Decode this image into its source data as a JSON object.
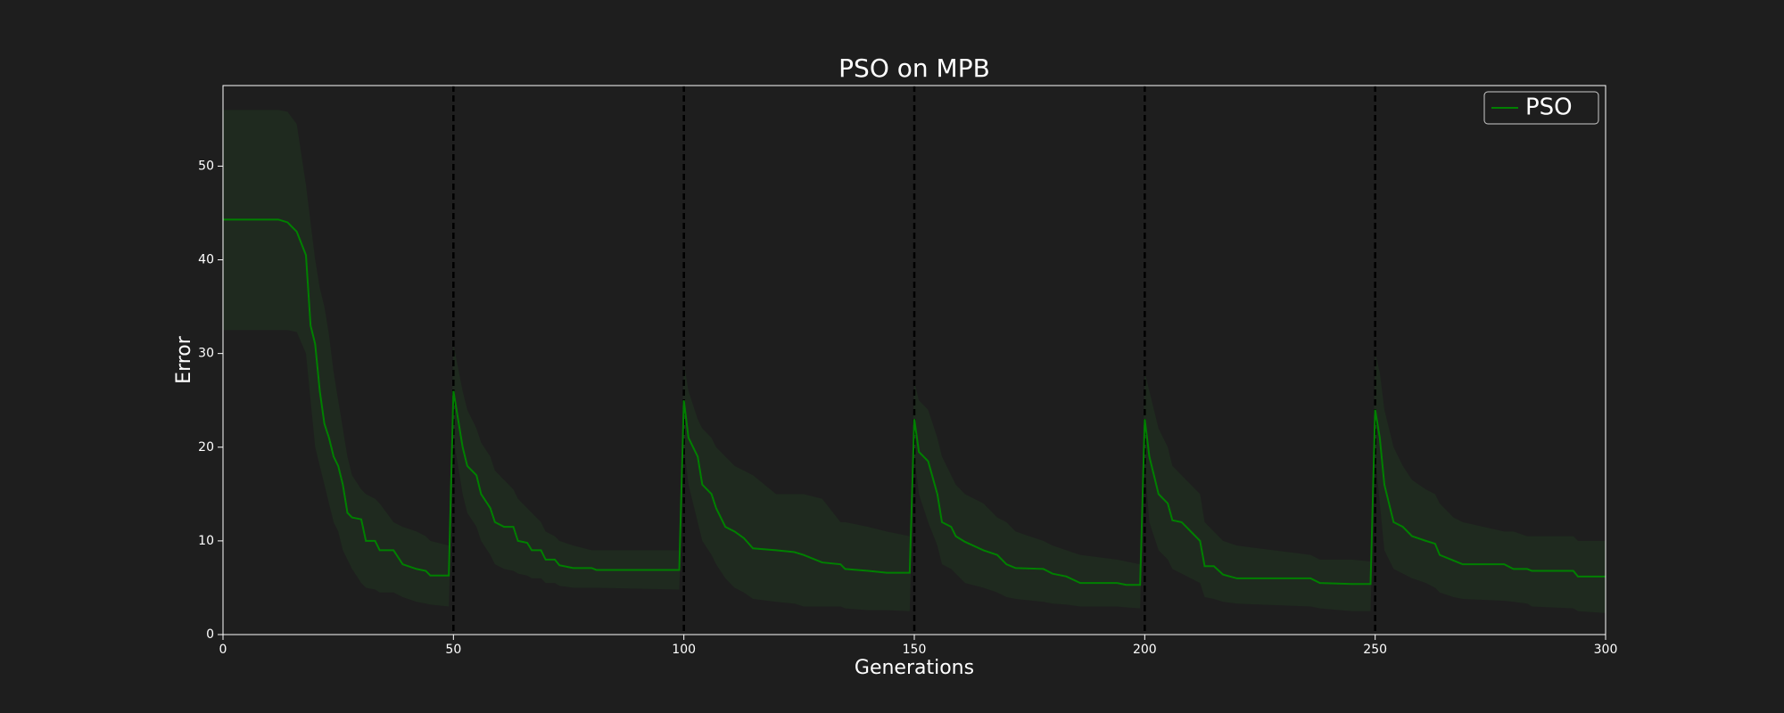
{
  "chart_data": {
    "type": "line",
    "title": "PSO on MPB",
    "xlabel": "Generations",
    "ylabel": "Error",
    "x": [
      0,
      12,
      14,
      16,
      18,
      19,
      20,
      21,
      22,
      23,
      24,
      25,
      26,
      27,
      28,
      30,
      31,
      33,
      34,
      37,
      39,
      42,
      44,
      45,
      49,
      50,
      52,
      53,
      55,
      56,
      58,
      59,
      61,
      63,
      64,
      66,
      67,
      69,
      70,
      72,
      73,
      76,
      80,
      81,
      99,
      100,
      101,
      103,
      104,
      106,
      107,
      109,
      111,
      113,
      115,
      120,
      124,
      126,
      130,
      134,
      135,
      140,
      144,
      149,
      150,
      151,
      153,
      155,
      156,
      158,
      159,
      161,
      165,
      168,
      170,
      172,
      178,
      180,
      183,
      186,
      194,
      196,
      199,
      200,
      201,
      203,
      205,
      206,
      208,
      210,
      212,
      213,
      215,
      217,
      220,
      236,
      238,
      245,
      249,
      250,
      251,
      252,
      254,
      256,
      258,
      261,
      263,
      264,
      267,
      269,
      278,
      280,
      283,
      284,
      293,
      294,
      300
    ],
    "series": [
      {
        "name": "PSO",
        "color": "#008000",
        "band_color": "#1f2a1f",
        "values": [
          44.3,
          44.3,
          44,
          43,
          40.5,
          33,
          31,
          26,
          22.5,
          21,
          19,
          18,
          16,
          13,
          12.5,
          12.3,
          10,
          10,
          9,
          9,
          7.5,
          7,
          6.8,
          6.3,
          6.3,
          26,
          20,
          18,
          17,
          15,
          13.5,
          12,
          11.5,
          11.5,
          10,
          9.8,
          9,
          9,
          8,
          8,
          7.4,
          7.1,
          7.1,
          6.9,
          6.9,
          25,
          21,
          19,
          16,
          15,
          13.5,
          11.5,
          11,
          10.3,
          9.2,
          9,
          8.8,
          8.5,
          7.7,
          7.5,
          7,
          6.8,
          6.6,
          6.6,
          23,
          19.5,
          18.5,
          15,
          12,
          11.5,
          10.5,
          9.9,
          9,
          8.5,
          7.5,
          7.1,
          7,
          6.5,
          6.2,
          5.5,
          5.5,
          5.3,
          5.3,
          23,
          19,
          15,
          14,
          12.2,
          12,
          11,
          10,
          7.3,
          7.3,
          6.4,
          6,
          6,
          5.5,
          5.4,
          5.4,
          24,
          21,
          16,
          12,
          11.5,
          10.5,
          10,
          9.7,
          8.5,
          7.9,
          7.5,
          7.5,
          7,
          7,
          6.8,
          6.8,
          6.2,
          6.2
        ],
        "upper": [
          56,
          56,
          55.8,
          54.5,
          48,
          44,
          40,
          37,
          35,
          32,
          28,
          25,
          22,
          19,
          17,
          15.5,
          15,
          14.5,
          14,
          12,
          11.5,
          11,
          10.5,
          10,
          9.5,
          31,
          26,
          24,
          22,
          20.5,
          19,
          17.5,
          16.5,
          15.5,
          14.5,
          13.5,
          13,
          12,
          11,
          10.5,
          10,
          9.5,
          9,
          9,
          9,
          29,
          26,
          23,
          22,
          21,
          20,
          19,
          18,
          17.5,
          17,
          15,
          15,
          15,
          14.5,
          12,
          12,
          11.5,
          11,
          10.5,
          27,
          25,
          24,
          21,
          19,
          17,
          16,
          15,
          14,
          12.5,
          12,
          11,
          10,
          9.5,
          9,
          8.5,
          8,
          7.8,
          7.5,
          28,
          26,
          22,
          20,
          18,
          17,
          16,
          15,
          12,
          11,
          10,
          9.5,
          8.5,
          8,
          8,
          7.8,
          30,
          28,
          24,
          20,
          18,
          16.5,
          15.5,
          15,
          14,
          12.5,
          12,
          11,
          11,
          10.5,
          10.5,
          10.5,
          10,
          10
        ],
        "lower": [
          32.5,
          32.5,
          32.5,
          32.3,
          30,
          25,
          20,
          18,
          16,
          14,
          12,
          11,
          9,
          8,
          7,
          5.5,
          5,
          4.8,
          4.5,
          4.5,
          4,
          3.5,
          3.3,
          3.2,
          3,
          21,
          15,
          13,
          11.5,
          10,
          8.5,
          7.5,
          7,
          6.8,
          6.5,
          6.3,
          6,
          6,
          5.5,
          5.5,
          5.2,
          5,
          5,
          5,
          4.8,
          20,
          16,
          12,
          10,
          8.5,
          7.5,
          6,
          5,
          4.5,
          3.8,
          3.5,
          3.3,
          3,
          3,
          3,
          2.8,
          2.6,
          2.6,
          2.5,
          19,
          15,
          12,
          9.5,
          7.5,
          7,
          6.5,
          5.5,
          5,
          4.5,
          4,
          3.8,
          3.5,
          3.3,
          3.2,
          3,
          3,
          2.9,
          2.8,
          18,
          12,
          9,
          8,
          7,
          6.5,
          6,
          5.5,
          4,
          3.8,
          3.5,
          3.3,
          3,
          2.8,
          2.5,
          2.5,
          19,
          14,
          9,
          7,
          6.5,
          6,
          5.5,
          5,
          4.5,
          4,
          3.8,
          3.6,
          3.5,
          3.3,
          3,
          2.8,
          2.5,
          2.3
        ]
      }
    ],
    "vlines": [
      50,
      100,
      150,
      200,
      250
    ],
    "vline_color": "#000000",
    "xlim": [
      0,
      300
    ],
    "ylim": [
      0,
      58.6
    ],
    "xticks": [
      0,
      50,
      100,
      150,
      200,
      250,
      300
    ],
    "yticks": [
      0,
      10,
      20,
      30,
      40,
      50
    ],
    "legend": "upper right"
  }
}
